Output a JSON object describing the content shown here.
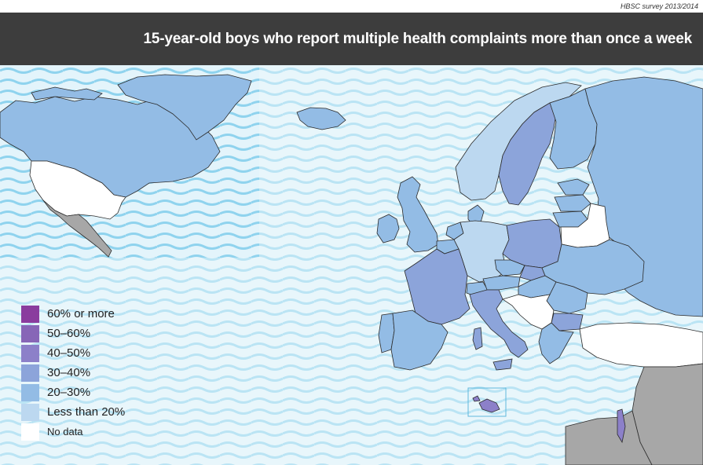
{
  "source_note": "HBSC survey 2013/2014",
  "title": "15-year-old boys who report multiple health complaints more than once a week",
  "colors": {
    "sea_light": "#e3f4fb",
    "sea_wave": "#8fd3ee",
    "less_than_20": "#bcd8f0",
    "c20_30": "#93bce5",
    "c30_40": "#8ca4da",
    "c40_50": "#8c80c9",
    "c50_60": "#8766b7",
    "c60_more": "#8a3c9e",
    "no_data": "#ffffff",
    "outside": "#a7a7a7"
  },
  "legend": [
    {
      "label": "60% or more",
      "color": "#8a3c9e"
    },
    {
      "label": "50–60%",
      "color": "#8766b7"
    },
    {
      "label": "40–50%",
      "color": "#8c80c9"
    },
    {
      "label": "30–40%",
      "color": "#8ca4da"
    },
    {
      "label": "20–30%",
      "color": "#93bce5"
    },
    {
      "label": "Less than 20%",
      "color": "#bcd8f0"
    },
    {
      "label": "No data",
      "color": "#ffffff"
    }
  ],
  "regions": [
    {
      "name": "Canada",
      "category": "20–30%"
    },
    {
      "name": "United States",
      "category": "No data"
    },
    {
      "name": "Greenland",
      "category": "20–30%"
    },
    {
      "name": "Iceland",
      "category": "20–30%"
    },
    {
      "name": "Norway",
      "category": "Less than 20%"
    },
    {
      "name": "Sweden",
      "category": "30–40%"
    },
    {
      "name": "Finland",
      "category": "20–30%"
    },
    {
      "name": "Russia",
      "category": "20–30%"
    },
    {
      "name": "Estonia",
      "category": "20–30%"
    },
    {
      "name": "Latvia",
      "category": "20–30%"
    },
    {
      "name": "Lithuania",
      "category": "20–30%"
    },
    {
      "name": "Belarus",
      "category": "No data"
    },
    {
      "name": "Ireland",
      "category": "20–30%"
    },
    {
      "name": "United Kingdom",
      "category": "20–30%"
    },
    {
      "name": "France",
      "category": "30–40%"
    },
    {
      "name": "Spain",
      "category": "20–30%"
    },
    {
      "name": "Portugal",
      "category": "20–30%"
    },
    {
      "name": "Germany",
      "category": "Less than 20%"
    },
    {
      "name": "Netherlands",
      "category": "20–30%"
    },
    {
      "name": "Belgium",
      "category": "20–30%"
    },
    {
      "name": "Denmark",
      "category": "20–30%"
    },
    {
      "name": "Poland",
      "category": "30–40%"
    },
    {
      "name": "Czech Republic",
      "category": "20–30%"
    },
    {
      "name": "Slovakia",
      "category": "30–40%"
    },
    {
      "name": "Austria",
      "category": "20–30%"
    },
    {
      "name": "Switzerland",
      "category": "20–30%"
    },
    {
      "name": "Italy",
      "category": "30–40%"
    },
    {
      "name": "Hungary",
      "category": "20–30%"
    },
    {
      "name": "Ukraine",
      "category": "20–30%"
    },
    {
      "name": "Romania",
      "category": "20–30%"
    },
    {
      "name": "Bulgaria",
      "category": "30–40%"
    },
    {
      "name": "Greece",
      "category": "20–30%"
    },
    {
      "name": "Turkey",
      "category": "No data"
    },
    {
      "name": "Malta",
      "category": "40–50%"
    },
    {
      "name": "Israel",
      "category": "40–50%"
    },
    {
      "name": "Mexico",
      "category": "Outside"
    },
    {
      "name": "Middle East",
      "category": "Outside"
    },
    {
      "name": "North Africa",
      "category": "Outside"
    }
  ]
}
